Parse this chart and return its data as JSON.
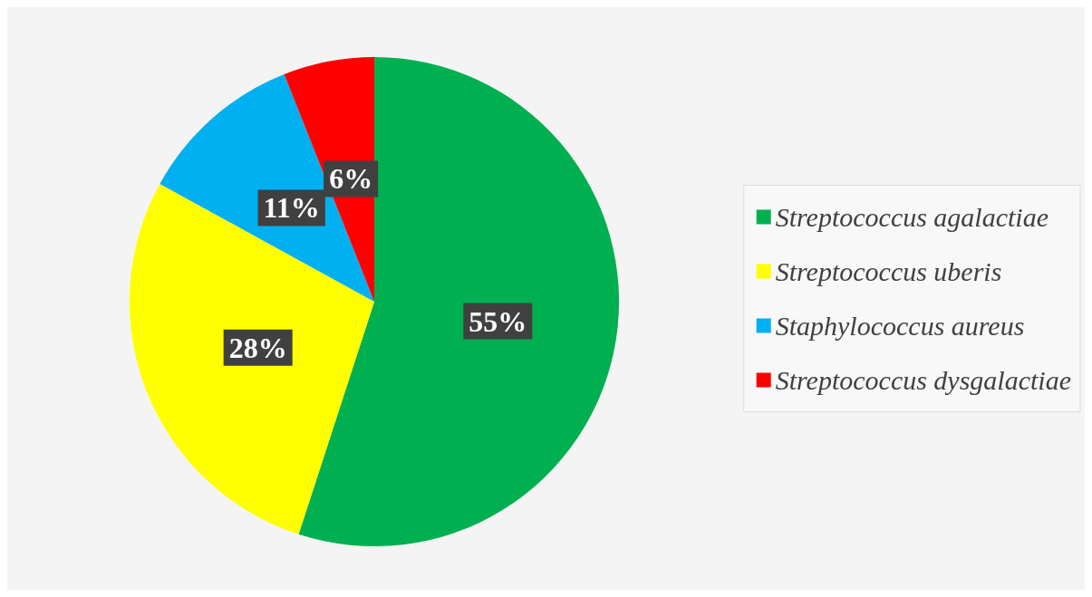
{
  "chart_data": {
    "type": "pie",
    "categories": [
      "Streptococcus agalactiae",
      "Streptococcus uberis",
      "Staphylococcus aureus",
      "Streptococcus dysgalactiae"
    ],
    "values": [
      55,
      28,
      11,
      6
    ],
    "colors": [
      "#00b050",
      "#ffff00",
      "#00b0f0",
      "#ff0000"
    ],
    "value_labels": [
      "55%",
      "28%",
      "11%",
      "6%"
    ],
    "legend": "right"
  }
}
